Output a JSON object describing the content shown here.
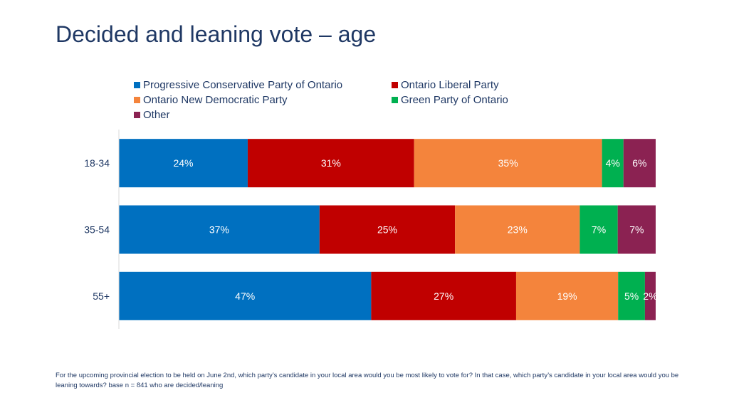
{
  "title": "Decided and leaning vote – age",
  "footnote": "For the upcoming provincial  election to be held on June 2nd, which party’s candidate in your local area would you be most likely to vote for?  In that case, which party’s candidate in your local area would you be leaning towards?  base n = 841 who are decided/leaning",
  "chart_data": {
    "type": "bar",
    "orientation": "horizontal",
    "stacked": true,
    "title": "Decided and leaning vote – age",
    "xlabel": "",
    "ylabel": "",
    "xlim": [
      0,
      100
    ],
    "grid": false,
    "legend_position": "top",
    "categories": [
      "18-34",
      "35-54",
      "55+"
    ],
    "series": [
      {
        "name": "Progressive Conservative Party of Ontario",
        "color": "#0070c0",
        "values": [
          24,
          37,
          47
        ]
      },
      {
        "name": "Ontario Liberal Party",
        "color": "#c00000",
        "values": [
          31,
          25,
          27
        ]
      },
      {
        "name": "Ontario New Democratic Party",
        "color": "#f4843c",
        "values": [
          35,
          23,
          19
        ]
      },
      {
        "name": "Green Party of Ontario",
        "color": "#00b050",
        "values": [
          4,
          7,
          5
        ]
      },
      {
        "name": "Other",
        "color": "#8b2252",
        "values": [
          6,
          7,
          2
        ]
      }
    ],
    "data_labels": [
      [
        "24%",
        "31%",
        "35%",
        "4%",
        "6%"
      ],
      [
        "37%",
        "25%",
        "23%",
        "7%",
        "7%"
      ],
      [
        "47%",
        "27%",
        "19%",
        "5%",
        "2%"
      ]
    ]
  }
}
